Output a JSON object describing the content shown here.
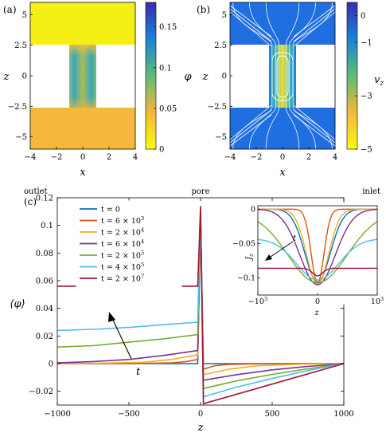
{
  "chart_data": [
    {
      "panel": "(a)",
      "type": "heatmap",
      "xlabel": "x",
      "ylabel": "z",
      "xlim": [
        -4,
        4
      ],
      "ylim": [
        -6,
        6
      ],
      "xticks": [
        "-4",
        "-2",
        "0",
        "2",
        "4"
      ],
      "yticks": [
        "-5",
        "-2.5",
        "0",
        "2.5",
        "5"
      ],
      "colorbar": {
        "label": "φ",
        "range": [
          0,
          0.18
        ],
        "ticks": [
          "0",
          "0.05",
          "0.1",
          "0.15"
        ],
        "colors": [
          "#f9fb0e",
          "#f3b838",
          "#5fbb75",
          "#1586d8",
          "#3b2bb0"
        ]
      },
      "regions": [
        {
          "name": "reservoir-top",
          "x": [
            -4,
            4
          ],
          "z": [
            2.5,
            6
          ],
          "value": 0.0
        },
        {
          "name": "pore",
          "x": [
            -1,
            1
          ],
          "z": [
            -2.5,
            2.5
          ],
          "value": 0.08
        },
        {
          "name": "reservoir-bottom",
          "x": [
            -4,
            4
          ],
          "z": [
            -6,
            -2.5
          ],
          "value": 0.03
        }
      ]
    },
    {
      "panel": "(b)",
      "type": "heatmap",
      "xlabel": "x",
      "ylabel": "z",
      "xlim": [
        -4,
        4
      ],
      "ylim": [
        -6,
        6
      ],
      "xticks": [
        "-4",
        "-2",
        "0",
        "2",
        "4"
      ],
      "yticks": [
        "-5",
        "-2.5",
        "0",
        "2.5",
        "5"
      ],
      "colorbar": {
        "label": "v_z",
        "range": [
          -5,
          0.5
        ],
        "ticks": [
          "0",
          "-1",
          "-3",
          "-5"
        ],
        "colors": [
          "#f9fb0e",
          "#f3b838",
          "#5fbb75",
          "#1586d8",
          "#3b2bb0"
        ]
      },
      "regions": [
        {
          "name": "reservoir-top",
          "x": [
            -4,
            4
          ],
          "z": [
            2.5,
            6
          ],
          "value": -0.1
        },
        {
          "name": "pore",
          "x": [
            -1,
            1
          ],
          "z": [
            -2.5,
            2.5
          ],
          "value": -3.5
        },
        {
          "name": "reservoir-bottom",
          "x": [
            -4,
            4
          ],
          "z": [
            -6,
            -2.5
          ],
          "value": -0.1
        }
      ],
      "streamlines": true
    },
    {
      "panel": "(c)",
      "type": "line",
      "xlabel": "z",
      "ylabel": "⟨φ⟩",
      "xlim": [
        -1000,
        1000
      ],
      "ylim": [
        -0.03,
        0.12
      ],
      "xticks": [
        -1000,
        -500,
        0,
        500,
        1000
      ],
      "yticks": [
        -0.02,
        0,
        0.02,
        0.04,
        0.06,
        0.08,
        0.1,
        0.12
      ],
      "top_labels": [
        "outlet",
        "pore",
        "inlet"
      ],
      "annotation": "t",
      "series": [
        {
          "name": "t = 0",
          "color": "#0072BD",
          "left": [
            [
              -1000,
              0
            ],
            [
              -20,
              0
            ]
          ],
          "pore": [
            [
              -20,
              0
            ],
            [
              0,
              0.105
            ],
            [
              20,
              0
            ]
          ],
          "right": [
            [
              20,
              0
            ],
            [
              1000,
              0
            ]
          ]
        },
        {
          "name": "t = 6 × 10^3",
          "color": "#D95319",
          "left": [
            [
              -1000,
              0
            ],
            [
              -500,
              0
            ],
            [
              -200,
              0.0005
            ],
            [
              -100,
              0.0015
            ],
            [
              -20,
              0.003
            ]
          ],
          "pore": [
            [
              -20,
              0.003
            ],
            [
              0,
              0.104
            ],
            [
              20,
              -0.004
            ]
          ],
          "right": [
            [
              20,
              -0.004
            ],
            [
              100,
              -0.0015
            ],
            [
              200,
              -0.0005
            ],
            [
              500,
              0
            ],
            [
              1000,
              0
            ]
          ]
        },
        {
          "name": "t = 2 × 10^4",
          "color": "#EDB120",
          "left": [
            [
              -1000,
              0
            ],
            [
              -700,
              0.0003
            ],
            [
              -400,
              0.001
            ],
            [
              -200,
              0.003
            ],
            [
              -20,
              0.0065
            ]
          ],
          "pore": [
            [
              -20,
              0.0065
            ],
            [
              0,
              0.106
            ],
            [
              20,
              -0.008
            ]
          ],
          "right": [
            [
              20,
              -0.008
            ],
            [
              200,
              -0.004
            ],
            [
              400,
              -0.0015
            ],
            [
              700,
              -0.0004
            ],
            [
              1000,
              0
            ]
          ]
        },
        {
          "name": "t = 6 × 10^4",
          "color": "#7E2F8E",
          "left": [
            [
              -1000,
              0.0005
            ],
            [
              -750,
              0.0015
            ],
            [
              -500,
              0.003
            ],
            [
              -250,
              0.006
            ],
            [
              -20,
              0.0095
            ]
          ],
          "pore": [
            [
              -20,
              0.0095
            ],
            [
              0,
              0.107
            ],
            [
              20,
              -0.012
            ]
          ],
          "right": [
            [
              20,
              -0.012
            ],
            [
              250,
              -0.008
            ],
            [
              500,
              -0.0045
            ],
            [
              750,
              -0.002
            ],
            [
              1000,
              0
            ]
          ]
        },
        {
          "name": "t = 2 × 10^5",
          "color": "#77AC30",
          "left": [
            [
              -1000,
              0.012
            ],
            [
              -750,
              0.013
            ],
            [
              -500,
              0.0155
            ],
            [
              -250,
              0.018
            ],
            [
              -20,
              0.021
            ]
          ],
          "pore": [
            [
              -20,
              0.021
            ],
            [
              0,
              0.109
            ],
            [
              20,
              -0.018
            ]
          ],
          "right": [
            [
              20,
              -0.018
            ],
            [
              250,
              -0.0125
            ],
            [
              500,
              -0.0078
            ],
            [
              750,
              -0.0037
            ],
            [
              1000,
              0
            ]
          ]
        },
        {
          "name": "t = 4 × 10^5",
          "color": "#4DBEEE",
          "left": [
            [
              -1000,
              0.024
            ],
            [
              -750,
              0.0248
            ],
            [
              -500,
              0.0262
            ],
            [
              -250,
              0.0282
            ],
            [
              -20,
              0.03
            ]
          ],
          "pore": [
            [
              -20,
              0.03
            ],
            [
              0,
              0.111
            ],
            [
              20,
              -0.024
            ]
          ],
          "right": [
            [
              20,
              -0.024
            ],
            [
              250,
              -0.017
            ],
            [
              500,
              -0.0108
            ],
            [
              750,
              -0.005
            ],
            [
              1000,
              0
            ]
          ]
        },
        {
          "name": "t = 2 × 10^7",
          "color": "#A2142F",
          "left": [
            [
              -1000,
              0.056
            ],
            [
              -20,
              0.056
            ]
          ],
          "pore": [
            [
              -20,
              0.056
            ],
            [
              0,
              0.114
            ],
            [
              20,
              -0.029
            ]
          ],
          "right": [
            [
              20,
              -0.029
            ],
            [
              1000,
              0
            ]
          ]
        }
      ]
    },
    {
      "panel": "(c) inset",
      "type": "line",
      "xlabel": "z",
      "ylabel": "J_z",
      "xlim": [
        -1000,
        1000
      ],
      "ylim": [
        -0.125,
        0.005
      ],
      "xticks": [
        "-10^3",
        "0",
        "10^3"
      ],
      "yticks": [
        0,
        -0.05,
        -0.1
      ],
      "annotation": "t",
      "series": [
        {
          "name": "t = 0",
          "color": "#0072BD",
          "width": 300,
          "base": 0,
          "depth": 0.106
        },
        {
          "name": "t = 6 × 10^3",
          "color": "#D95319",
          "width": 150,
          "base": 0,
          "depth": 0.108
        },
        {
          "name": "t = 2 × 10^4",
          "color": "#EDB120",
          "width": 260,
          "base": 0,
          "depth": 0.109
        },
        {
          "name": "t = 6 × 10^4",
          "color": "#7E2F8E",
          "width": 420,
          "base": 0,
          "depth": 0.11
        },
        {
          "name": "t = 2 × 10^5",
          "color": "#77AC30",
          "width": 700,
          "base": -0.005,
          "depth": 0.102
        },
        {
          "name": "t = 4 × 10^5",
          "color": "#4DBEEE",
          "width": 500,
          "base": -0.043,
          "depth": 0.06
        },
        {
          "name": "t = 2 × 10^7",
          "color": "#A2142F",
          "width": 120,
          "base": -0.086,
          "depth": 0.011
        }
      ]
    }
  ]
}
